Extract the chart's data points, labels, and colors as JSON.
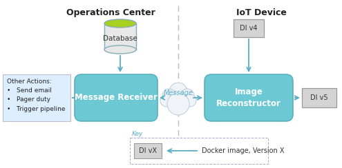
{
  "title_left": "Operations Center",
  "title_right": "IoT Device",
  "bg_color": "#ffffff",
  "main_box_color": "#6cc9d4",
  "main_box_edge": "#5ab0bc",
  "gray_box_color": "#d4d4d4",
  "gray_box_edge": "#999999",
  "other_actions_box_color": "#ddeeff",
  "other_actions_box_edge": "#bbbbcc",
  "key_box_edge": "#aaaacc",
  "arrow_color": "#5aaec8",
  "dashed_line_color": "#bbbbbb",
  "db_body_color": "#e8e8e8",
  "db_top_color": "#a8d020",
  "db_edge_color": "#88aabb",
  "cloud_color": "#f0f4f8",
  "cloud_edge_color": "#bbccdd",
  "msg_receiver_label": "Message Receiver",
  "img_reconstructor_label": "Image\nReconstructor",
  "database_label": "Database",
  "message_label": "Message",
  "di_v4_label": "DI v4",
  "di_v5_label": "DI v5",
  "di_vx_label": "DI vX",
  "other_actions_text": "Other Actions:\n•   Send email\n•   Pager duty\n•   Trigger pipeline",
  "key_title": "Key",
  "key_desc": "Docker image, Version X",
  "figw": 4.95,
  "figh": 2.44,
  "dpi": 100
}
